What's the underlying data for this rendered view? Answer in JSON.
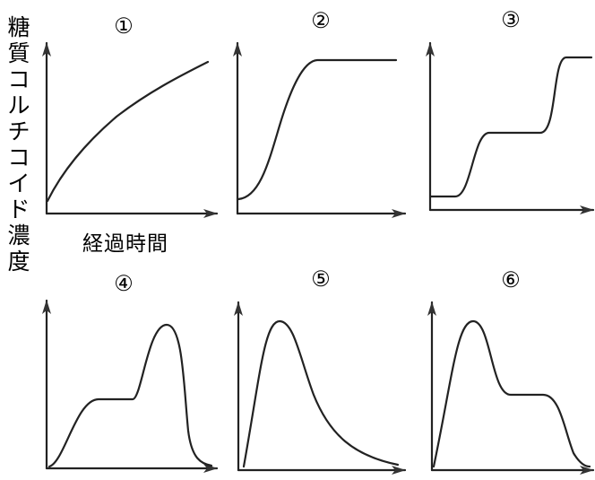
{
  "labels": {
    "y_axis_chars": [
      "糖",
      "質",
      "コ",
      "ル",
      "チ",
      "コ",
      "イ",
      "ド",
      "濃",
      "度"
    ],
    "x_axis": "経過時間"
  },
  "panels": [
    {
      "label": "①",
      "shape": "monotonic increasing, decelerating"
    },
    {
      "label": "②",
      "shape": "sigmoid rise to plateau"
    },
    {
      "label": "③",
      "shape": "two-step rise"
    },
    {
      "label": "④",
      "shape": "shoulder then peak, then decline"
    },
    {
      "label": "⑤",
      "shape": "single early peak then gradual decline"
    },
    {
      "label": "⑥",
      "shape": "early peak, shoulder, then decline"
    }
  ]
}
